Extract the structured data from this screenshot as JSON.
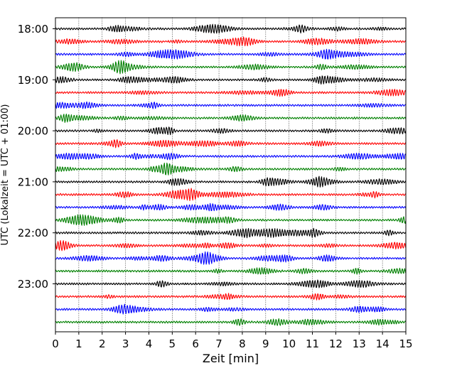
{
  "chart_data": {
    "type": "line",
    "title": "",
    "xlabel": "Zeit  [min]",
    "ylabel": "UTC (Lokalzeit = UTC + 01:00)",
    "xlim": [
      0,
      15
    ],
    "x_ticks": [
      "0",
      "1",
      "2",
      "3",
      "4",
      "5",
      "6",
      "7",
      "8",
      "9",
      "10",
      "11",
      "12",
      "13",
      "14",
      "15"
    ],
    "y_ticks": [
      "18:00",
      "19:00",
      "20:00",
      "21:00",
      "22:00",
      "23:00"
    ],
    "grid": "vertical dotted lines at each minute",
    "trace_interval_min": 15,
    "trace_colors": [
      "#000000",
      "#ff0000",
      "#0000ff",
      "#008000"
    ],
    "rows": [
      {
        "time": "18:00",
        "color": "#000000"
      },
      {
        "time": "18:15",
        "color": "#ff0000"
      },
      {
        "time": "18:30",
        "color": "#0000ff"
      },
      {
        "time": "18:45",
        "color": "#008000"
      },
      {
        "time": "19:00",
        "color": "#000000"
      },
      {
        "time": "19:15",
        "color": "#ff0000"
      },
      {
        "time": "19:30",
        "color": "#0000ff"
      },
      {
        "time": "19:45",
        "color": "#008000"
      },
      {
        "time": "20:00",
        "color": "#000000"
      },
      {
        "time": "20:15",
        "color": "#ff0000"
      },
      {
        "time": "20:30",
        "color": "#0000ff"
      },
      {
        "time": "20:45",
        "color": "#008000"
      },
      {
        "time": "21:00",
        "color": "#000000"
      },
      {
        "time": "21:15",
        "color": "#ff0000"
      },
      {
        "time": "21:30",
        "color": "#0000ff"
      },
      {
        "time": "21:45",
        "color": "#008000"
      },
      {
        "time": "22:00",
        "color": "#000000"
      },
      {
        "time": "22:15",
        "color": "#ff0000"
      },
      {
        "time": "22:30",
        "color": "#0000ff"
      },
      {
        "time": "22:45",
        "color": "#008000"
      },
      {
        "time": "23:00",
        "color": "#000000"
      },
      {
        "time": "23:15",
        "color": "#ff0000"
      },
      {
        "time": "23:30",
        "color": "#0000ff"
      },
      {
        "time": "23:45",
        "color": "#008000"
      }
    ]
  }
}
